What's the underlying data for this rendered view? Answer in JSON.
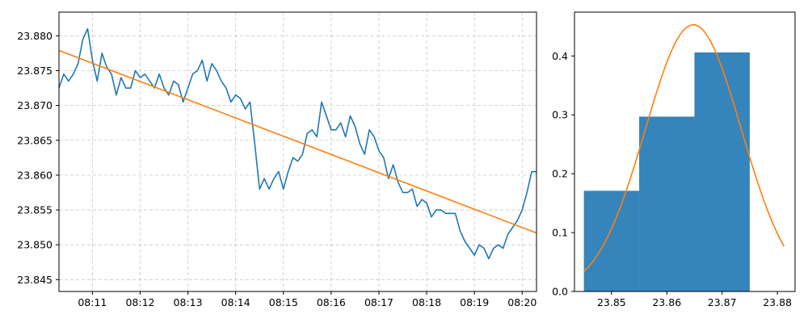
{
  "colors": {
    "price": "#1f77b4",
    "trend": "#ff7f0e",
    "hist": "#1f77b4"
  },
  "chart_data": [
    {
      "type": "line",
      "x_unit": "time (HH:MM), data in minutes",
      "xlim": [
        8.3,
        18.3
      ],
      "ylim": [
        23.8433,
        23.8834
      ],
      "x_ticks": [
        {
          "value": 9,
          "label": "08:11"
        },
        {
          "value": 10,
          "label": "08:12"
        },
        {
          "value": 11,
          "label": "08:13"
        },
        {
          "value": 12,
          "label": "08:14"
        },
        {
          "value": 13,
          "label": "08:15"
        },
        {
          "value": 14,
          "label": "08:16"
        },
        {
          "value": 15,
          "label": "08:17"
        },
        {
          "value": 16,
          "label": "08:18"
        },
        {
          "value": 17,
          "label": "08:19"
        },
        {
          "value": 18,
          "label": "08:20"
        }
      ],
      "y_ticks": [
        {
          "value": 23.845,
          "label": "23.845"
        },
        {
          "value": 23.85,
          "label": "23.850"
        },
        {
          "value": 23.855,
          "label": "23.855"
        },
        {
          "value": 23.86,
          "label": "23.860"
        },
        {
          "value": 23.865,
          "label": "23.865"
        },
        {
          "value": 23.87,
          "label": "23.870"
        },
        {
          "value": 23.875,
          "label": "23.875"
        },
        {
          "value": 23.88,
          "label": "23.880"
        }
      ],
      "grid": true,
      "series": [
        {
          "role": "price",
          "x": [
            8.3,
            8.4,
            8.5,
            8.6,
            8.7,
            8.8,
            8.9,
            9.0,
            9.1,
            9.2,
            9.3,
            9.4,
            9.5,
            9.6,
            9.7,
            9.8,
            9.9,
            10.0,
            10.1,
            10.2,
            10.3,
            10.4,
            10.5,
            10.6,
            10.7,
            10.8,
            10.9,
            11.0,
            11.1,
            11.2,
            11.3,
            11.4,
            11.5,
            11.6,
            11.7,
            11.8,
            11.9,
            12.0,
            12.1,
            12.2,
            12.3,
            12.4,
            12.5,
            12.6,
            12.7,
            12.8,
            12.9,
            13.0,
            13.1,
            13.2,
            13.3,
            13.4,
            13.5,
            13.6,
            13.7,
            13.8,
            13.9,
            14.0,
            14.1,
            14.2,
            14.3,
            14.4,
            14.5,
            14.6,
            14.7,
            14.8,
            14.9,
            15.0,
            15.1,
            15.2,
            15.3,
            15.4,
            15.5,
            15.6,
            15.7,
            15.8,
            15.9,
            16.0,
            16.1,
            16.2,
            16.3,
            16.4,
            16.5,
            16.6,
            16.7,
            16.8,
            16.9,
            17.0,
            17.1,
            17.2,
            17.3,
            17.4,
            17.5,
            17.6,
            17.7,
            17.8,
            17.9,
            18.0,
            18.1,
            18.2,
            18.3
          ],
          "y": [
            23.8725,
            23.8745,
            23.8735,
            23.8745,
            23.876,
            23.8795,
            23.881,
            23.8765,
            23.8735,
            23.8775,
            23.8755,
            23.8745,
            23.8715,
            23.874,
            23.8725,
            23.8725,
            23.875,
            23.874,
            23.8745,
            23.8735,
            23.8725,
            23.8745,
            23.8725,
            23.8715,
            23.8735,
            23.873,
            23.8705,
            23.8725,
            23.8745,
            23.875,
            23.8765,
            23.8735,
            23.876,
            23.875,
            23.8735,
            23.8725,
            23.8705,
            23.8715,
            23.871,
            23.8695,
            23.8705,
            23.8645,
            23.858,
            23.8595,
            23.858,
            23.8595,
            23.8605,
            23.858,
            23.8605,
            23.8625,
            23.862,
            23.863,
            23.866,
            23.8665,
            23.8655,
            23.8705,
            23.8685,
            23.8665,
            23.8665,
            23.8675,
            23.8655,
            23.8685,
            23.867,
            23.8645,
            23.863,
            23.8665,
            23.8655,
            23.8635,
            23.8625,
            23.8595,
            23.8615,
            23.859,
            23.8575,
            23.8575,
            23.858,
            23.8555,
            23.8565,
            23.856,
            23.854,
            23.855,
            23.855,
            23.8545,
            23.8545,
            23.8545,
            23.852,
            23.8505,
            23.8495,
            23.8485,
            23.85,
            23.8495,
            23.848,
            23.8495,
            23.85,
            23.8495,
            23.8515,
            23.8525,
            23.8535,
            23.855,
            23.8575,
            23.8605,
            23.8605
          ],
          "color_key": "price"
        },
        {
          "role": "trend",
          "x": [
            8.3,
            18.3
          ],
          "y": [
            23.8779,
            23.8517
          ],
          "color_key": "trend"
        }
      ]
    },
    {
      "type": "bar",
      "subtype": "histogram",
      "xlim": [
        23.8433,
        23.8832
      ],
      "ylim": [
        0,
        0.4745
      ],
      "bins": [
        {
          "start": 23.845,
          "end": 23.855,
          "density": 0.171
        },
        {
          "start": 23.855,
          "end": 23.865,
          "density": 0.297
        },
        {
          "start": 23.865,
          "end": 23.875,
          "density": 0.406
        }
      ],
      "x_ticks": [
        {
          "value": 23.85,
          "label": "23.85"
        },
        {
          "value": 23.86,
          "label": "23.86"
        },
        {
          "value": 23.87,
          "label": "23.87"
        },
        {
          "value": 23.88,
          "label": "23.88"
        }
      ],
      "y_ticks": [
        {
          "value": 0.0,
          "label": "0.0"
        },
        {
          "value": 0.1,
          "label": "0.1"
        },
        {
          "value": 0.2,
          "label": "0.2"
        },
        {
          "value": 0.3,
          "label": "0.3"
        },
        {
          "value": 0.4,
          "label": "0.4"
        }
      ],
      "grid": false,
      "fit_curve": {
        "type": "normal",
        "mean": 23.8648,
        "peak_density": 0.453,
        "sigma": 0.0087,
        "x_range": [
          23.845,
          23.8812
        ]
      },
      "color_key": "hist"
    }
  ]
}
